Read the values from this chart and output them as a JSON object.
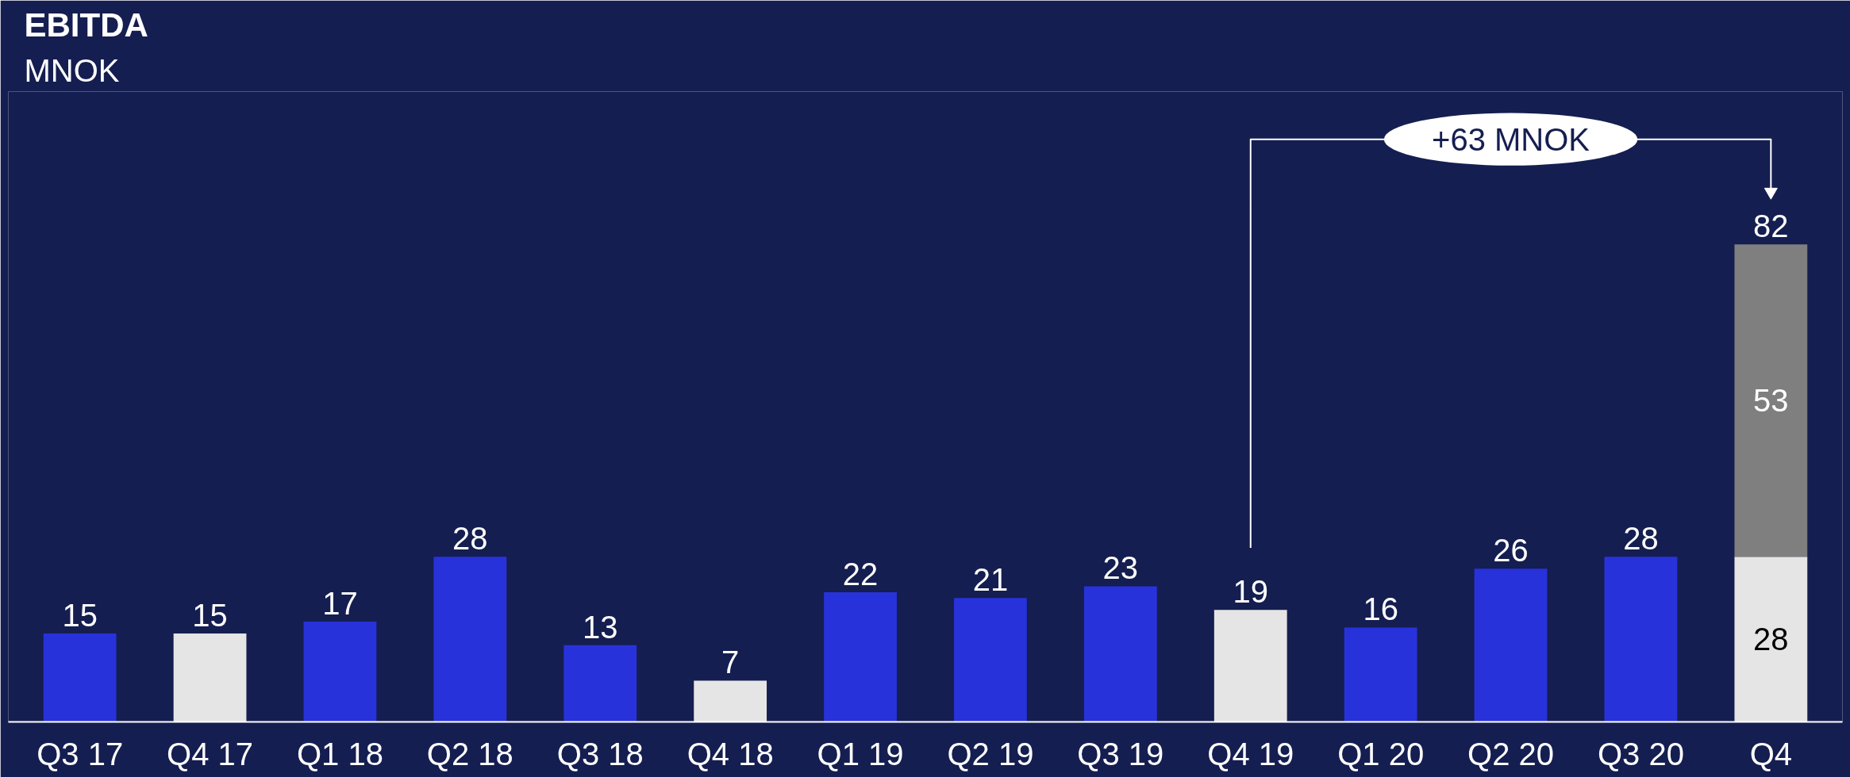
{
  "chart_data": {
    "type": "bar",
    "title": "EBITDA",
    "subtitle": "MNOK",
    "stacked": true,
    "data_labels": true,
    "categories": [
      "Q3 17",
      "Q4 17",
      "Q1 18",
      "Q2 18",
      "Q3 18",
      "Q4 18",
      "Q1 19",
      "Q2 19",
      "Q3 19",
      "Q4 19",
      "Q1 20",
      "Q2 20",
      "Q3 20",
      "Q4"
    ],
    "series": [
      {
        "values": [
          15,
          15,
          17,
          28,
          13,
          7,
          22,
          21,
          23,
          19,
          16,
          26,
          28,
          28
        ],
        "colors": [
          "#2832db",
          "#e5e5e5",
          "#2832db",
          "#2832db",
          "#2832db",
          "#e5e5e5",
          "#2832db",
          "#2832db",
          "#2832db",
          "#e5e5e5",
          "#2832db",
          "#2832db",
          "#2832db",
          "#e5e5e5"
        ]
      },
      {
        "values": [
          null,
          null,
          null,
          null,
          null,
          null,
          null,
          null,
          null,
          null,
          null,
          null,
          null,
          53
        ],
        "color": "#7f7f7f"
      }
    ],
    "totals": [
      null,
      null,
      null,
      null,
      null,
      null,
      null,
      null,
      null,
      null,
      null,
      null,
      null,
      "82"
    ],
    "annotations": [
      "+63 MNOK"
    ],
    "grid": false
  }
}
